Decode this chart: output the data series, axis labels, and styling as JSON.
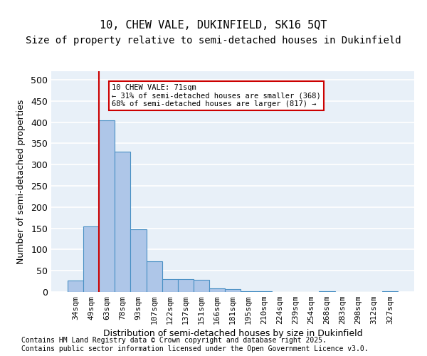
{
  "title_line1": "10, CHEW VALE, DUKINFIELD, SK16 5QT",
  "title_line2": "Size of property relative to semi-detached houses in Dukinfield",
  "xlabel": "Distribution of semi-detached houses by size in Dukinfield",
  "ylabel": "Number of semi-detached properties",
  "categories": [
    "34sqm",
    "49sqm",
    "63sqm",
    "78sqm",
    "93sqm",
    "107sqm",
    "122sqm",
    "137sqm",
    "151sqm",
    "166sqm",
    "181sqm",
    "195sqm",
    "210sqm",
    "224sqm",
    "239sqm",
    "254sqm",
    "268sqm",
    "283sqm",
    "298sqm",
    "312sqm",
    "327sqm"
  ],
  "values": [
    27,
    155,
    405,
    330,
    148,
    72,
    30,
    30,
    29,
    8,
    6,
    1,
    1,
    0,
    0,
    0,
    1,
    0,
    0,
    0,
    2
  ],
  "bar_color": "#aec6e8",
  "bar_edge_color": "#4a90c4",
  "vline_x": 2,
  "vline_color": "#cc0000",
  "annotation_text": "10 CHEW VALE: 71sqm\n← 31% of semi-detached houses are smaller (368)\n68% of semi-detached houses are larger (817) →",
  "annotation_box_color": "#cc0000",
  "footer": "Contains HM Land Registry data © Crown copyright and database right 2025.\nContains public sector information licensed under the Open Government Licence v3.0.",
  "ylim": [
    0,
    520
  ],
  "background_color": "#e8f0f8",
  "grid_color": "#ffffff",
  "title_fontsize": 11,
  "subtitle_fontsize": 10,
  "axis_fontsize": 8,
  "footer_fontsize": 7
}
